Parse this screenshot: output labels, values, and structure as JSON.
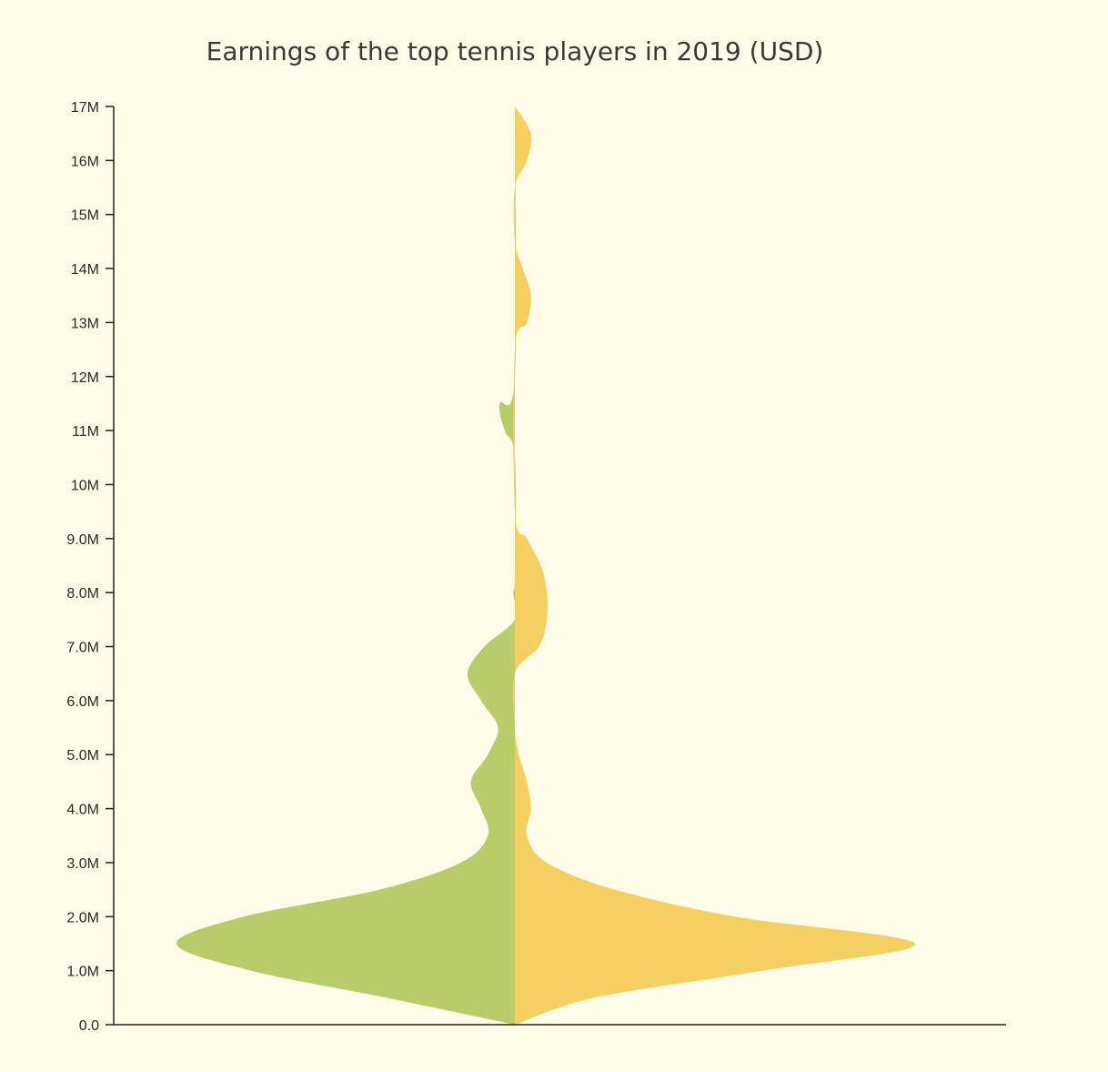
{
  "chart_data": {
    "type": "violin",
    "title": "Earnings of the top tennis players in 2019 (USD)",
    "xlabel": "",
    "ylabel": "",
    "ylim": [
      0,
      17000000
    ],
    "y_ticks": [
      "0.0",
      "1.0M",
      "2.0M",
      "3.0M",
      "4.0M",
      "5.0M",
      "6.0M",
      "7.0M",
      "8.0M",
      "9.0M",
      "10M",
      "11M",
      "12M",
      "13M",
      "14M",
      "15M",
      "16M",
      "17M"
    ],
    "y_tick_values": [
      0,
      1000000,
      2000000,
      3000000,
      4000000,
      5000000,
      6000000,
      7000000,
      8000000,
      9000000,
      10000000,
      11000000,
      12000000,
      13000000,
      14000000,
      15000000,
      16000000,
      17000000
    ],
    "grid": false,
    "legend": "none",
    "series": [
      {
        "side": "left",
        "color": "#b8cc6c",
        "density": [
          [
            0,
            0
          ],
          [
            500000,
            0.38
          ],
          [
            1000000,
            0.78
          ],
          [
            1500000,
            1.0
          ],
          [
            2000000,
            0.8
          ],
          [
            2500000,
            0.4
          ],
          [
            3000000,
            0.16
          ],
          [
            3500000,
            0.08
          ],
          [
            4000000,
            0.1
          ],
          [
            4500000,
            0.13
          ],
          [
            5000000,
            0.08
          ],
          [
            5500000,
            0.05
          ],
          [
            6000000,
            0.1
          ],
          [
            6500000,
            0.14
          ],
          [
            7000000,
            0.09
          ],
          [
            7500000,
            0.0
          ],
          [
            8000000,
            0.005
          ],
          [
            8300000,
            0.0
          ],
          [
            10500000,
            0.0
          ],
          [
            11000000,
            0.03
          ],
          [
            11500000,
            0.045
          ],
          [
            12000000,
            0.0
          ],
          [
            17000000,
            0.0
          ]
        ]
      },
      {
        "side": "right",
        "color": "#f4d062",
        "density": [
          [
            0,
            0
          ],
          [
            500000,
            0.2
          ],
          [
            1000000,
            0.62
          ],
          [
            1500000,
            1.0
          ],
          [
            2000000,
            0.55
          ],
          [
            2500000,
            0.25
          ],
          [
            3000000,
            0.08
          ],
          [
            3500000,
            0.03
          ],
          [
            4000000,
            0.04
          ],
          [
            4500000,
            0.03
          ],
          [
            5000000,
            0.01
          ],
          [
            5500000,
            0.0
          ],
          [
            6500000,
            0.0
          ],
          [
            7000000,
            0.06
          ],
          [
            7500000,
            0.08
          ],
          [
            8000000,
            0.08
          ],
          [
            8500000,
            0.065
          ],
          [
            9000000,
            0.03
          ],
          [
            9500000,
            0.0
          ],
          [
            12500000,
            0.0
          ],
          [
            13000000,
            0.03
          ],
          [
            13500000,
            0.04
          ],
          [
            14000000,
            0.02
          ],
          [
            14500000,
            0.0
          ],
          [
            15500000,
            0.0
          ],
          [
            16000000,
            0.03
          ],
          [
            16500000,
            0.04
          ],
          [
            17000000,
            0.0
          ]
        ]
      }
    ]
  }
}
